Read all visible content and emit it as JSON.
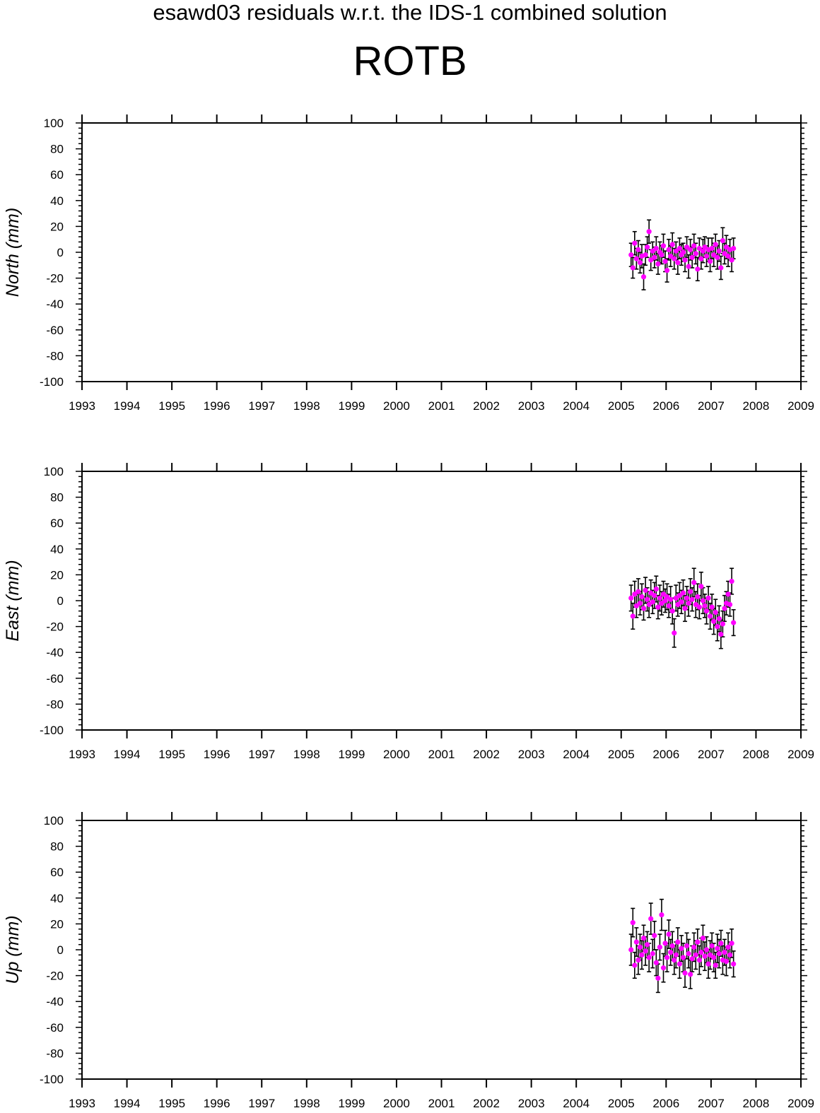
{
  "header": {
    "title": "esawd03 residuals w.r.t. the IDS-1 combined solution",
    "station": "ROTB"
  },
  "colors": {
    "marker": "#ff00ff",
    "errorbar": "#000000",
    "axis": "#000000"
  },
  "chart_data": [
    {
      "type": "scatter",
      "component": "north",
      "ylabel": "North (mm)",
      "xlim": [
        1993,
        2009
      ],
      "ylim": [
        -100,
        100
      ],
      "xticks": [
        "1993",
        "1994",
        "1995",
        "1996",
        "1997",
        "1998",
        "1999",
        "2000",
        "2001",
        "2002",
        "2003",
        "2004",
        "2005",
        "2006",
        "2007",
        "2008",
        "2009"
      ],
      "yticks": [
        "100",
        "80",
        "60",
        "40",
        "20",
        "0",
        "-20",
        "-40",
        "-60",
        "-80",
        "-100"
      ],
      "data_range": [
        2005.2,
        2007.5
      ],
      "points": [
        [
          2005.22,
          -2,
          9
        ],
        [
          2005.26,
          -12,
          8
        ],
        [
          2005.3,
          7,
          9
        ],
        [
          2005.34,
          -5,
          8
        ],
        [
          2005.38,
          2,
          7
        ],
        [
          2005.42,
          -8,
          8
        ],
        [
          2005.46,
          -3,
          9
        ],
        [
          2005.5,
          -19,
          10
        ],
        [
          2005.54,
          -2,
          8
        ],
        [
          2005.58,
          4,
          8
        ],
        [
          2005.62,
          16,
          9
        ],
        [
          2005.66,
          -6,
          8
        ],
        [
          2005.7,
          1,
          7
        ],
        [
          2005.74,
          -4,
          8
        ],
        [
          2005.78,
          3,
          9
        ],
        [
          2005.82,
          -9,
          8
        ],
        [
          2005.86,
          0,
          8
        ],
        [
          2005.9,
          -2,
          7
        ],
        [
          2005.94,
          5,
          9
        ],
        [
          2005.98,
          -7,
          8
        ],
        [
          2006.02,
          -14,
          9
        ],
        [
          2006.06,
          2,
          8
        ],
        [
          2006.1,
          -3,
          8
        ],
        [
          2006.14,
          6,
          9
        ],
        [
          2006.18,
          -5,
          8
        ],
        [
          2006.22,
          1,
          7
        ],
        [
          2006.26,
          -8,
          9
        ],
        [
          2006.3,
          3,
          8
        ],
        [
          2006.34,
          -2,
          8
        ],
        [
          2006.38,
          0,
          7
        ],
        [
          2006.42,
          -6,
          9
        ],
        [
          2006.46,
          4,
          8
        ],
        [
          2006.5,
          -11,
          9
        ],
        [
          2006.54,
          2,
          8
        ],
        [
          2006.58,
          -4,
          8
        ],
        [
          2006.62,
          5,
          9
        ],
        [
          2006.66,
          -1,
          8
        ],
        [
          2006.7,
          -13,
          9
        ],
        [
          2006.74,
          3,
          8
        ],
        [
          2006.78,
          -5,
          8
        ],
        [
          2006.82,
          1,
          9
        ],
        [
          2006.86,
          4,
          8
        ],
        [
          2006.9,
          -3,
          8
        ],
        [
          2006.94,
          2,
          9
        ],
        [
          2006.98,
          -7,
          8
        ],
        [
          2007.02,
          3,
          8
        ],
        [
          2007.06,
          -2,
          9
        ],
        [
          2007.1,
          6,
          8
        ],
        [
          2007.14,
          -4,
          9
        ],
        [
          2007.18,
          1,
          8
        ],
        [
          2007.22,
          -12,
          9
        ],
        [
          2007.26,
          9,
          10
        ],
        [
          2007.3,
          -1,
          8
        ],
        [
          2007.34,
          4,
          9
        ],
        [
          2007.38,
          -3,
          8
        ],
        [
          2007.42,
          2,
          8
        ],
        [
          2007.46,
          -6,
          9
        ],
        [
          2007.5,
          3,
          8
        ]
      ]
    },
    {
      "type": "scatter",
      "component": "east",
      "ylabel": "East (mm)",
      "xlim": [
        1993,
        2009
      ],
      "ylim": [
        -100,
        100
      ],
      "xticks": [
        "1993",
        "1994",
        "1995",
        "1996",
        "1997",
        "1998",
        "1999",
        "2000",
        "2001",
        "2002",
        "2003",
        "2004",
        "2005",
        "2006",
        "2007",
        "2008",
        "2009"
      ],
      "yticks": [
        "100",
        "80",
        "60",
        "40",
        "20",
        "0",
        "-20",
        "-40",
        "-60",
        "-80",
        "-100"
      ],
      "data_range": [
        2005.2,
        2007.5
      ],
      "points": [
        [
          2005.22,
          2,
          10
        ],
        [
          2005.26,
          -12,
          10
        ],
        [
          2005.3,
          5,
          10
        ],
        [
          2005.34,
          -4,
          9
        ],
        [
          2005.38,
          7,
          10
        ],
        [
          2005.42,
          -2,
          9
        ],
        [
          2005.46,
          3,
          10
        ],
        [
          2005.5,
          -6,
          9
        ],
        [
          2005.54,
          8,
          10
        ],
        [
          2005.58,
          1,
          9
        ],
        [
          2005.62,
          -3,
          10
        ],
        [
          2005.66,
          6,
          10
        ],
        [
          2005.7,
          -1,
          9
        ],
        [
          2005.74,
          4,
          10
        ],
        [
          2005.78,
          9,
          10
        ],
        [
          2005.82,
          -5,
          9
        ],
        [
          2005.86,
          2,
          10
        ],
        [
          2005.9,
          -2,
          9
        ],
        [
          2005.94,
          5,
          10
        ],
        [
          2005.98,
          0,
          9
        ],
        [
          2006.02,
          3,
          10
        ],
        [
          2006.06,
          -4,
          9
        ],
        [
          2006.1,
          1,
          10
        ],
        [
          2006.14,
          -8,
          10
        ],
        [
          2006.18,
          -25,
          11
        ],
        [
          2006.22,
          2,
          10
        ],
        [
          2006.26,
          -3,
          9
        ],
        [
          2006.3,
          4,
          10
        ],
        [
          2006.34,
          -1,
          9
        ],
        [
          2006.38,
          6,
          10
        ],
        [
          2006.42,
          -6,
          10
        ],
        [
          2006.46,
          2,
          9
        ],
        [
          2006.5,
          -2,
          10
        ],
        [
          2006.54,
          7,
          10
        ],
        [
          2006.58,
          1,
          9
        ],
        [
          2006.62,
          14,
          11
        ],
        [
          2006.66,
          -3,
          10
        ],
        [
          2006.7,
          3,
          10
        ],
        [
          2006.74,
          -5,
          9
        ],
        [
          2006.78,
          11,
          11
        ],
        [
          2006.82,
          0,
          10
        ],
        [
          2006.86,
          -4,
          9
        ],
        [
          2006.9,
          -8,
          10
        ],
        [
          2006.94,
          2,
          9
        ],
        [
          2006.98,
          -12,
          10
        ],
        [
          2007.02,
          -5,
          10
        ],
        [
          2007.06,
          -16,
          10
        ],
        [
          2007.1,
          -9,
          10
        ],
        [
          2007.14,
          -20,
          11
        ],
        [
          2007.18,
          -14,
          10
        ],
        [
          2007.22,
          -26,
          11
        ],
        [
          2007.26,
          -18,
          10
        ],
        [
          2007.3,
          -6,
          10
        ],
        [
          2007.34,
          -2,
          9
        ],
        [
          2007.38,
          5,
          10
        ],
        [
          2007.42,
          -3,
          9
        ],
        [
          2007.46,
          15,
          10
        ],
        [
          2007.5,
          -17,
          10
        ]
      ]
    },
    {
      "type": "scatter",
      "component": "up",
      "ylabel": "Up (mm)",
      "xlim": [
        1993,
        2009
      ],
      "ylim": [
        -100,
        100
      ],
      "xticks": [
        "1993",
        "1994",
        "1995",
        "1996",
        "1997",
        "1998",
        "1999",
        "2000",
        "2001",
        "2002",
        "2003",
        "2004",
        "2005",
        "2006",
        "2007",
        "2008",
        "2009"
      ],
      "yticks": [
        "100",
        "80",
        "60",
        "40",
        "20",
        "0",
        "-20",
        "-40",
        "-60",
        "-80",
        "-100"
      ],
      "data_range": [
        2005.2,
        2007.5
      ],
      "points": [
        [
          2005.22,
          0,
          12
        ],
        [
          2005.26,
          21,
          11
        ],
        [
          2005.3,
          -12,
          10
        ],
        [
          2005.34,
          6,
          11
        ],
        [
          2005.38,
          -8,
          11
        ],
        [
          2005.42,
          2,
          10
        ],
        [
          2005.46,
          -4,
          11
        ],
        [
          2005.5,
          9,
          10
        ],
        [
          2005.54,
          -1,
          11
        ],
        [
          2005.58,
          4,
          10
        ],
        [
          2005.62,
          -6,
          11
        ],
        [
          2005.66,
          24,
          12
        ],
        [
          2005.7,
          -3,
          11
        ],
        [
          2005.74,
          11,
          11
        ],
        [
          2005.78,
          -10,
          10
        ],
        [
          2005.82,
          -22,
          11
        ],
        [
          2005.86,
          2,
          10
        ],
        [
          2005.9,
          27,
          12
        ],
        [
          2005.94,
          -14,
          11
        ],
        [
          2005.98,
          5,
          10
        ],
        [
          2006.02,
          -6,
          11
        ],
        [
          2006.06,
          12,
          11
        ],
        [
          2006.1,
          -2,
          10
        ],
        [
          2006.14,
          3,
          11
        ],
        [
          2006.18,
          -8,
          11
        ],
        [
          2006.22,
          -4,
          10
        ],
        [
          2006.26,
          6,
          11
        ],
        [
          2006.3,
          -11,
          11
        ],
        [
          2006.34,
          1,
          10
        ],
        [
          2006.38,
          -6,
          11
        ],
        [
          2006.42,
          -18,
          11
        ],
        [
          2006.46,
          3,
          10
        ],
        [
          2006.5,
          -3,
          11
        ],
        [
          2006.54,
          -19,
          11
        ],
        [
          2006.58,
          -7,
          10
        ],
        [
          2006.62,
          2,
          11
        ],
        [
          2006.66,
          -4,
          11
        ],
        [
          2006.7,
          6,
          10
        ],
        [
          2006.74,
          -8,
          11
        ],
        [
          2006.78,
          -2,
          11
        ],
        [
          2006.82,
          9,
          10
        ],
        [
          2006.86,
          -5,
          11
        ],
        [
          2006.9,
          0,
          10
        ],
        [
          2006.94,
          -11,
          11
        ],
        [
          2006.98,
          -4,
          11
        ],
        [
          2007.02,
          3,
          10
        ],
        [
          2007.06,
          -6,
          11
        ],
        [
          2007.1,
          -12,
          10
        ],
        [
          2007.14,
          1,
          11
        ],
        [
          2007.18,
          -3,
          11
        ],
        [
          2007.22,
          5,
          10
        ],
        [
          2007.26,
          -8,
          11
        ],
        [
          2007.3,
          -2,
          10
        ],
        [
          2007.34,
          -9,
          11
        ],
        [
          2007.38,
          2,
          11
        ],
        [
          2007.42,
          -4,
          10
        ],
        [
          2007.46,
          5,
          11
        ],
        [
          2007.5,
          -11,
          10
        ]
      ]
    }
  ]
}
